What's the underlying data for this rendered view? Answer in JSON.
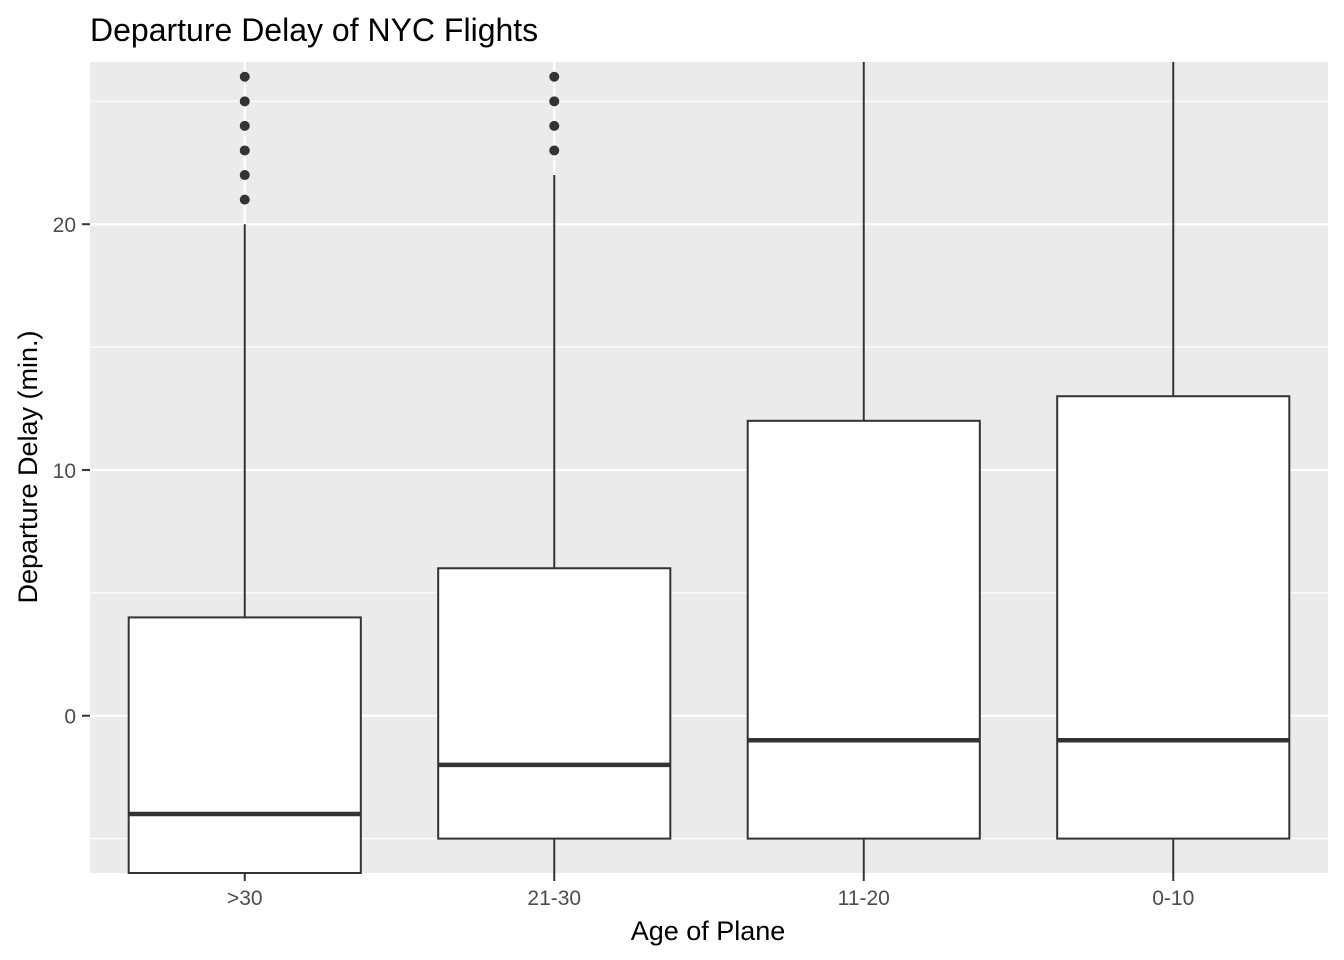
{
  "chart_data": {
    "type": "boxplot",
    "title": "Departure Delay of NYC Flights",
    "xlabel": "Age of Plane",
    "ylabel": "Departure Delay (min.)",
    "categories": [
      ">30",
      "21-30",
      "11-20",
      "0-10"
    ],
    "ylim": [
      -6.4,
      26.6
    ],
    "yticks": [
      0,
      10,
      20
    ],
    "grid": true,
    "boxes": [
      {
        "category": ">30",
        "lower_whisker": -6.4,
        "q1": -6.4,
        "median": -4,
        "q3": 4,
        "upper_whisker": 20,
        "outliers": [
          21,
          22,
          23,
          24,
          25,
          26
        ]
      },
      {
        "category": "21-30",
        "lower_whisker": -6.4,
        "q1": -5,
        "median": -2,
        "q3": 6,
        "upper_whisker": 22,
        "outliers": [
          23,
          24,
          25,
          26
        ]
      },
      {
        "category": "11-20",
        "lower_whisker": -6.4,
        "q1": -5,
        "median": -1,
        "q3": 12,
        "upper_whisker": 26.6,
        "outliers": []
      },
      {
        "category": "0-10",
        "lower_whisker": -6.4,
        "q1": -5,
        "median": -1,
        "q3": 13,
        "upper_whisker": 26.6,
        "outliers": []
      }
    ],
    "colors": {
      "panel": "#ebebeb",
      "grid": "#ffffff",
      "box_fill": "#ffffff",
      "box_stroke": "#333333",
      "tick_text": "#4d4d4d"
    }
  }
}
